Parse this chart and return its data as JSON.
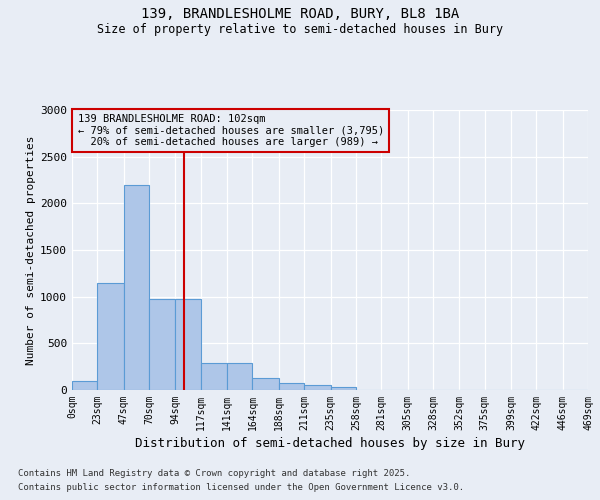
{
  "title_line1": "139, BRANDLESHOLME ROAD, BURY, BL8 1BA",
  "title_line2": "Size of property relative to semi-detached houses in Bury",
  "xlabel": "Distribution of semi-detached houses by size in Bury",
  "ylabel": "Number of semi-detached properties",
  "bin_edges": [
    0,
    23,
    47,
    70,
    94,
    117,
    141,
    164,
    188,
    211,
    235,
    258,
    281,
    305,
    328,
    352,
    375,
    399,
    422,
    446,
    469
  ],
  "bar_heights": [
    100,
    1150,
    2200,
    980,
    980,
    290,
    290,
    130,
    70,
    50,
    30,
    5,
    5,
    0,
    0,
    0,
    0,
    0,
    0,
    0
  ],
  "bar_color": "#aec6e8",
  "bar_edge_color": "#5b9bd5",
  "property_size": 102,
  "vline_color": "#cc0000",
  "annotation_text": "139 BRANDLESHOLME ROAD: 102sqm\n← 79% of semi-detached houses are smaller (3,795)\n  20% of semi-detached houses are larger (989) →",
  "ylim": [
    0,
    3000
  ],
  "yticks": [
    0,
    500,
    1000,
    1500,
    2000,
    2500,
    3000
  ],
  "footnote_line1": "Contains HM Land Registry data © Crown copyright and database right 2025.",
  "footnote_line2": "Contains public sector information licensed under the Open Government Licence v3.0.",
  "bg_color": "#e8edf5",
  "grid_color": "#ffffff"
}
